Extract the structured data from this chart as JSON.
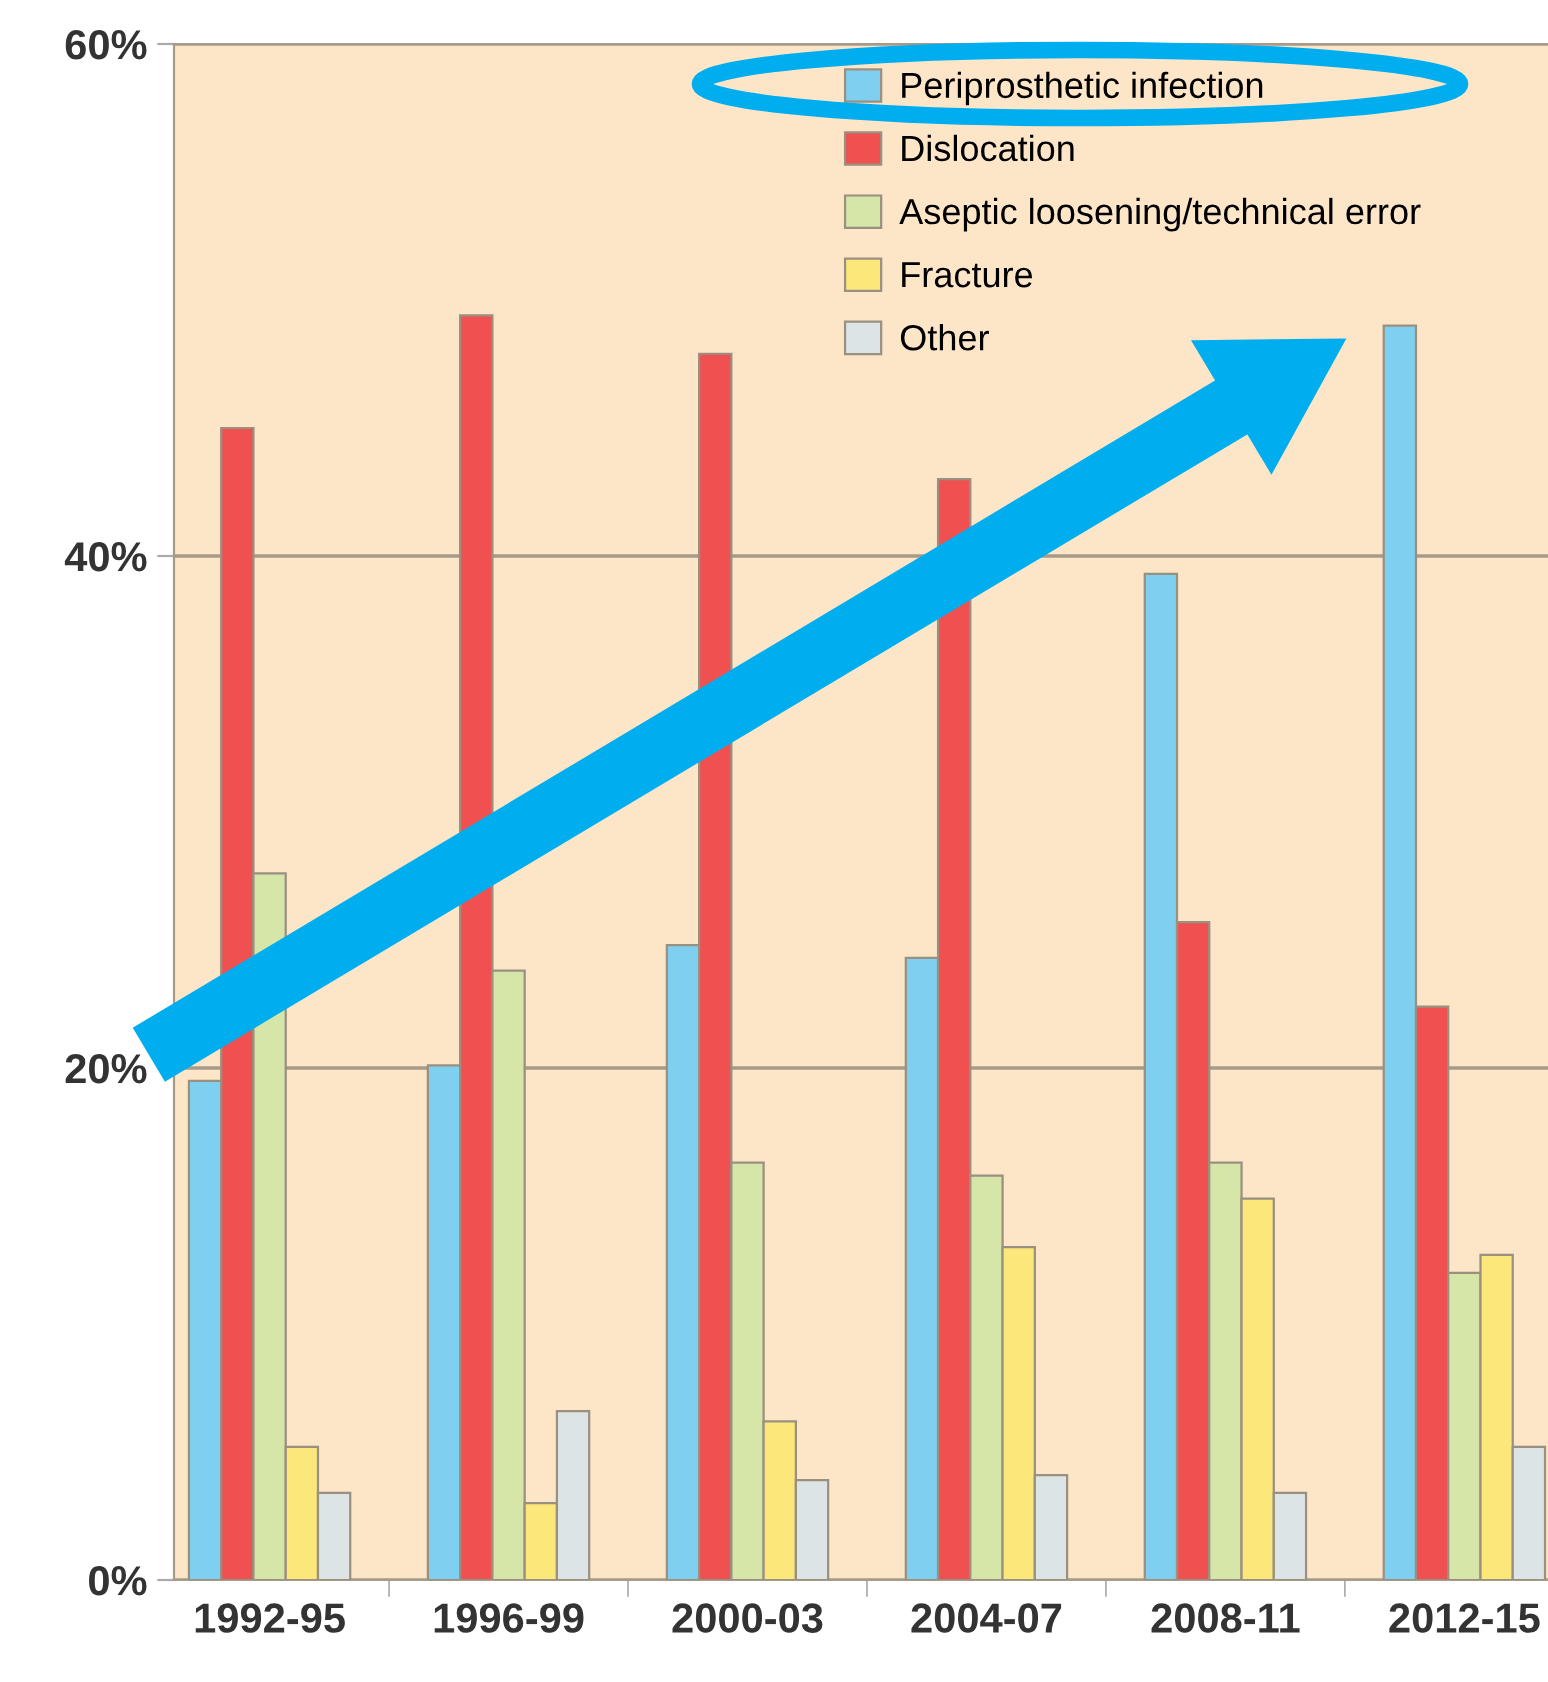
{
  "chart_data": {
    "type": "bar",
    "categories": [
      "1992-95",
      "1996-99",
      "2000-03",
      "2004-07",
      "2008-11",
      "2012-15"
    ],
    "series": [
      {
        "name": "Periprosthetic infection",
        "color": "#7ecff0",
        "values": [
          19.5,
          20.1,
          24.8,
          24.3,
          39.3,
          49.0
        ]
      },
      {
        "name": "Dislocation",
        "color": "#f05050",
        "values": [
          45.0,
          49.4,
          47.9,
          43.0,
          25.7,
          22.4
        ]
      },
      {
        "name": "Aseptic loosening/technical error",
        "color": "#d5e6a8",
        "values": [
          27.6,
          23.8,
          16.3,
          15.8,
          16.3,
          12.0
        ]
      },
      {
        "name": "Fracture",
        "color": "#fbe77a",
        "values": [
          5.2,
          3.0,
          6.2,
          13.0,
          14.9,
          12.7
        ]
      },
      {
        "name": "Other",
        "color": "#dde4e6",
        "values": [
          3.4,
          6.6,
          3.9,
          4.1,
          3.4,
          5.2
        ]
      }
    ],
    "ylim": [
      0,
      60
    ],
    "yticks": [
      {
        "value": 0,
        "label": "0%"
      },
      {
        "value": 20,
        "label": "20%"
      },
      {
        "value": 40,
        "label": "40%"
      },
      {
        "value": 60,
        "label": "60%"
      }
    ],
    "grid": "y",
    "legend": "top right"
  }
}
